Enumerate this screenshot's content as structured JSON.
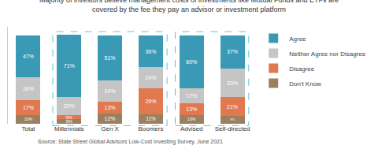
{
  "chart_data": {
    "type": "bar",
    "stacked": true,
    "title": "Majority of investors believe management costs of investments like Mutual Funds and ETFs are\ncovered by the fee they pay an advisor or investment platform",
    "annotations": [
      "Source: State Street Global Advisors Low-Cost Investing Survey, June 2021"
    ],
    "categories": [
      "Total",
      "Millennials",
      "Gen X",
      "Boomers",
      "Advised",
      "Self-directed"
    ],
    "series": [
      {
        "name": "Don't Know",
        "color": "#9b8060",
        "values": [
          10,
          5,
          12,
          11,
          10,
          9
        ],
        "value_labels": [
          "10%",
          "5%",
          "12%",
          "11%",
          "10%",
          "9%"
        ]
      },
      {
        "name": "Disagree",
        "color": "#e07850",
        "values": [
          17,
          5,
          13,
          29,
          13,
          21
        ],
        "value_labels": [
          "17%",
          "5%",
          "13%",
          "29%",
          "13%",
          "21%"
        ]
      },
      {
        "name": "Neither Agree nor Disagree",
        "color": "#c5c5c5",
        "values": [
          26,
          20,
          24,
          24,
          17,
          33
        ],
        "value_labels": [
          "26%",
          "20%",
          "24%",
          "24%",
          "17%",
          "33%"
        ]
      },
      {
        "name": "Agree",
        "color": "#3a9ab5",
        "values": [
          47,
          71,
          51,
          36,
          60,
          37
        ],
        "value_labels": [
          "47%",
          "71%",
          "51%",
          "36%",
          "60%",
          "37%"
        ]
      }
    ],
    "ylim": [
      0,
      110
    ],
    "yticks": [],
    "tick_labels": "x",
    "data_labels": true,
    "grid": false,
    "legend": "right"
  }
}
